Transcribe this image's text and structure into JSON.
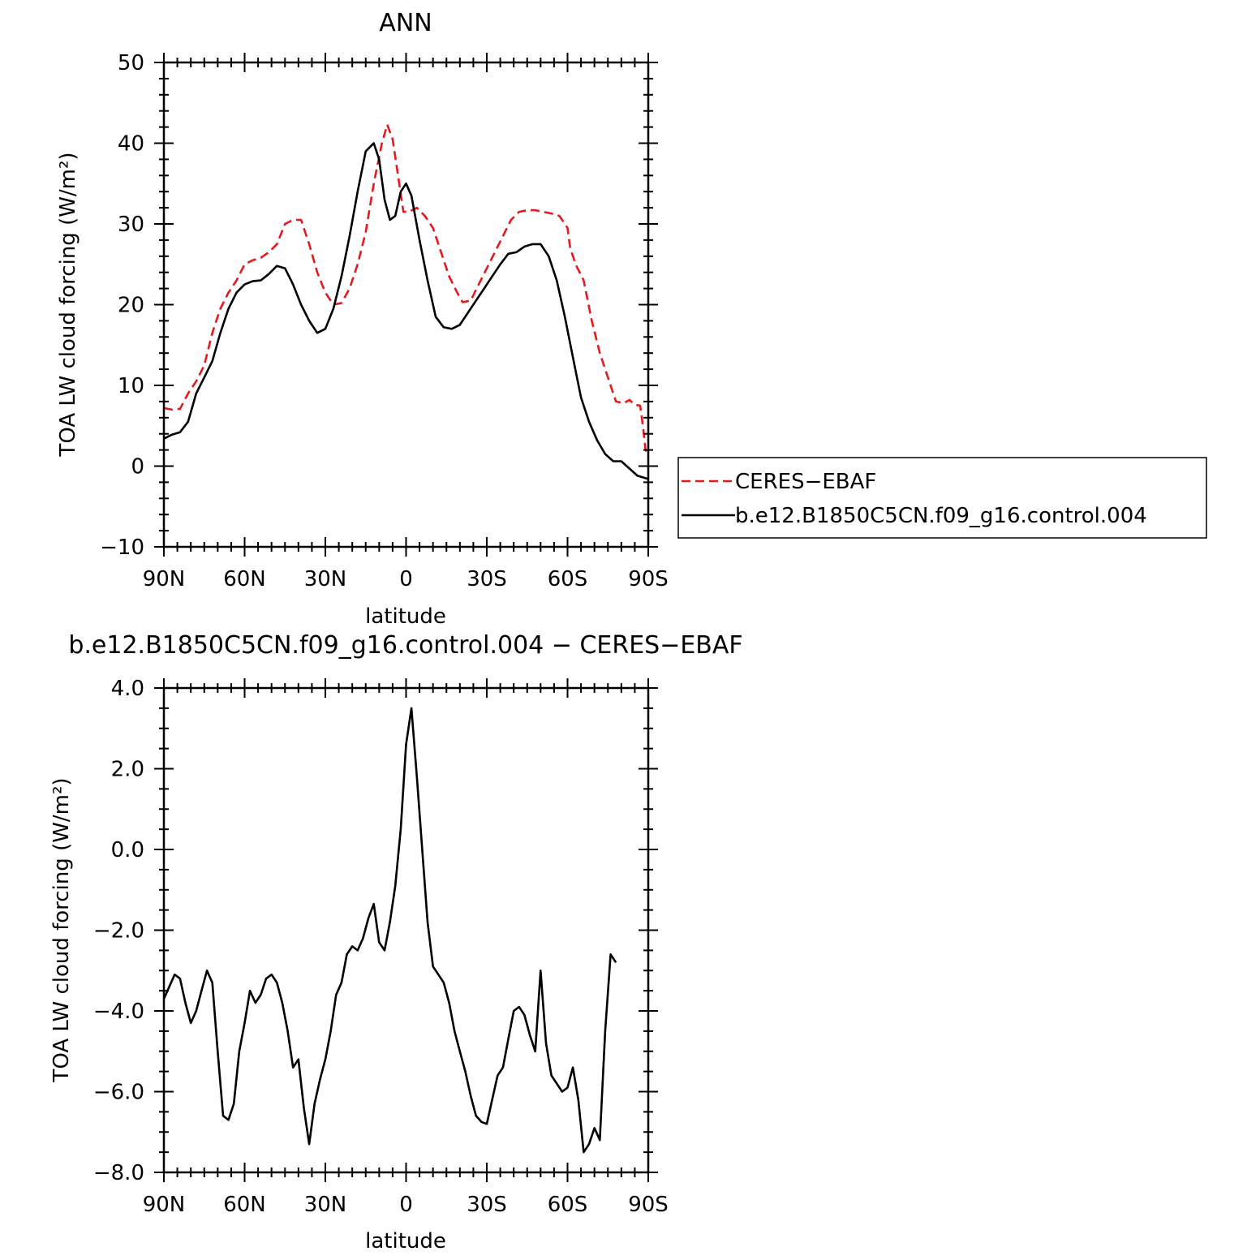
{
  "chart_data": [
    {
      "type": "line",
      "title": "ANN",
      "xlabel": "latitude",
      "ylabel": "TOA LW cloud forcing (W/m²)",
      "xlim": [
        90,
        -90
      ],
      "ylim": [
        -10,
        50
      ],
      "xticks": [
        90,
        60,
        30,
        0,
        -30,
        -60,
        -90
      ],
      "xtick_labels": [
        "90N",
        "60N",
        "30N",
        "0",
        "30S",
        "60S",
        "90S"
      ],
      "yticks": [
        -10,
        0,
        10,
        20,
        30,
        40,
        50
      ],
      "ytick_labels": [
        "−10",
        "0",
        "10",
        "20",
        "30",
        "40",
        "50"
      ],
      "legend_placement": "right",
      "series": [
        {
          "name": "CERES−EBAF",
          "color": "#e41a1c",
          "dash": "dashed",
          "points": [
            [
              90,
              7.2
            ],
            [
              87,
              7.0
            ],
            [
              84,
              7.1
            ],
            [
              81,
              9.0
            ],
            [
              78,
              10.5
            ],
            [
              75,
              12.5
            ],
            [
              72,
              16.5
            ],
            [
              69,
              19.5
            ],
            [
              66,
              21.5
            ],
            [
              63,
              23.0
            ],
            [
              60,
              25.0
            ],
            [
              57,
              25.5
            ],
            [
              54,
              25.8
            ],
            [
              51,
              26.5
            ],
            [
              48,
              27.5
            ],
            [
              45,
              30.0
            ],
            [
              42,
              30.5
            ],
            [
              39,
              30.5
            ],
            [
              36,
              27.5
            ],
            [
              33,
              24.0
            ],
            [
              30,
              21.5
            ],
            [
              27,
              20.0
            ],
            [
              24,
              20.2
            ],
            [
              21,
              22.0
            ],
            [
              18,
              25.0
            ],
            [
              15,
              29.0
            ],
            [
              12,
              35.0
            ],
            [
              9,
              40.0
            ],
            [
              7,
              42.3
            ],
            [
              5,
              40.5
            ],
            [
              3,
              36.0
            ],
            [
              1,
              31.5
            ],
            [
              -1,
              31.5
            ],
            [
              -4,
              32.0
            ],
            [
              -7,
              31.0
            ],
            [
              -10,
              29.5
            ],
            [
              -13,
              26.5
            ],
            [
              -16,
              23.5
            ],
            [
              -19,
              21.5
            ],
            [
              -21,
              20.3
            ],
            [
              -24,
              20.5
            ],
            [
              -27,
              22.5
            ],
            [
              -30,
              24.5
            ],
            [
              -33,
              26.5
            ],
            [
              -36,
              28.5
            ],
            [
              -39,
              30.5
            ],
            [
              -42,
              31.5
            ],
            [
              -45,
              31.7
            ],
            [
              -48,
              31.7
            ],
            [
              -51,
              31.5
            ],
            [
              -54,
              31.3
            ],
            [
              -57,
              31.0
            ],
            [
              -60,
              29.5
            ],
            [
              -61,
              27.0
            ],
            [
              -63,
              25.0
            ],
            [
              -66,
              23.0
            ],
            [
              -69,
              18.0
            ],
            [
              -72,
              14.0
            ],
            [
              -75,
              11.0
            ],
            [
              -78,
              8.0
            ],
            [
              -81,
              7.8
            ],
            [
              -83,
              8.2
            ],
            [
              -85,
              7.6
            ],
            [
              -87,
              7.5
            ],
            [
              -88,
              5.0
            ],
            [
              -89,
              2.0
            ],
            [
              -90,
              1.3
            ]
          ]
        },
        {
          "name": "b.e12.B1850C5CN.f09_g16.control.004",
          "color": "#000000",
          "dash": "solid",
          "points": [
            [
              90,
              3.4
            ],
            [
              87,
              3.9
            ],
            [
              84,
              4.2
            ],
            [
              81,
              5.5
            ],
            [
              78,
              9.0
            ],
            [
              75,
              11.0
            ],
            [
              72,
              13.0
            ],
            [
              69,
              16.5
            ],
            [
              66,
              19.5
            ],
            [
              63,
              21.5
            ],
            [
              60,
              22.5
            ],
            [
              57,
              22.9
            ],
            [
              54,
              23.0
            ],
            [
              51,
              23.8
            ],
            [
              48,
              24.8
            ],
            [
              45,
              24.5
            ],
            [
              42,
              22.5
            ],
            [
              39,
              20.0
            ],
            [
              36,
              18.0
            ],
            [
              33,
              16.5
            ],
            [
              30,
              17.0
            ],
            [
              27,
              19.5
            ],
            [
              24,
              23.5
            ],
            [
              21,
              28.5
            ],
            [
              18,
              34.0
            ],
            [
              15,
              39.0
            ],
            [
              12,
              40.0
            ],
            [
              10,
              38.0
            ],
            [
              8,
              33.0
            ],
            [
              6,
              30.5
            ],
            [
              4,
              31.0
            ],
            [
              2,
              34.0
            ],
            [
              0,
              35.0
            ],
            [
              -2,
              33.5
            ],
            [
              -5,
              28.0
            ],
            [
              -8,
              23.0
            ],
            [
              -11,
              18.5
            ],
            [
              -14,
              17.2
            ],
            [
              -17,
              17.0
            ],
            [
              -20,
              17.5
            ],
            [
              -23,
              19.0
            ],
            [
              -26,
              20.5
            ],
            [
              -29,
              22.0
            ],
            [
              -32,
              23.5
            ],
            [
              -35,
              25.0
            ],
            [
              -38,
              26.3
            ],
            [
              -41,
              26.5
            ],
            [
              -44,
              27.2
            ],
            [
              -47,
              27.5
            ],
            [
              -50,
              27.5
            ],
            [
              -53,
              26.0
            ],
            [
              -56,
              23.0
            ],
            [
              -59,
              18.5
            ],
            [
              -62,
              13.5
            ],
            [
              -65,
              8.5
            ],
            [
              -68,
              5.5
            ],
            [
              -71,
              3.2
            ],
            [
              -74,
              1.5
            ],
            [
              -77,
              0.6
            ],
            [
              -80,
              0.6
            ],
            [
              -83,
              -0.3
            ],
            [
              -86,
              -1.2
            ],
            [
              -90,
              -1.6
            ]
          ]
        }
      ]
    },
    {
      "type": "line",
      "title": "b.e12.B1850C5CN.f09_g16.control.004 − CERES−EBAF",
      "xlabel": "latitude",
      "ylabel": "TOA LW cloud forcing (W/m²)",
      "xlim": [
        90,
        -90
      ],
      "ylim": [
        -8,
        4
      ],
      "xticks": [
        90,
        60,
        30,
        0,
        -30,
        -60,
        -90
      ],
      "xtick_labels": [
        "90N",
        "60N",
        "30N",
        "0",
        "30S",
        "60S",
        "90S"
      ],
      "yticks": [
        -8,
        -6,
        -4,
        -2,
        0,
        2,
        4
      ],
      "ytick_labels": [
        "−8.0",
        "−6.0",
        "−4.0",
        "−2.0",
        "0.0",
        "2.0",
        "4.0"
      ],
      "series": [
        {
          "color": "#000000",
          "dash": "solid",
          "points": [
            [
              90,
              -3.7
            ],
            [
              88,
              -3.4
            ],
            [
              86,
              -3.1
            ],
            [
              84,
              -3.2
            ],
            [
              82,
              -3.8
            ],
            [
              80,
              -4.3
            ],
            [
              78,
              -4.0
            ],
            [
              76,
              -3.5
            ],
            [
              74,
              -3.0
            ],
            [
              72,
              -3.3
            ],
            [
              70,
              -5.0
            ],
            [
              68,
              -6.6
            ],
            [
              66,
              -6.7
            ],
            [
              64,
              -6.3
            ],
            [
              62,
              -5.0
            ],
            [
              60,
              -4.3
            ],
            [
              58,
              -3.5
            ],
            [
              56,
              -3.8
            ],
            [
              54,
              -3.6
            ],
            [
              52,
              -3.2
            ],
            [
              50,
              -3.1
            ],
            [
              48,
              -3.3
            ],
            [
              46,
              -3.8
            ],
            [
              44,
              -4.5
            ],
            [
              42,
              -5.4
            ],
            [
              40,
              -5.2
            ],
            [
              38,
              -6.4
            ],
            [
              36,
              -7.3
            ],
            [
              34,
              -6.3
            ],
            [
              32,
              -5.7
            ],
            [
              30,
              -5.2
            ],
            [
              28,
              -4.5
            ],
            [
              26,
              -3.6
            ],
            [
              24,
              -3.3
            ],
            [
              22,
              -2.6
            ],
            [
              20,
              -2.4
            ],
            [
              18,
              -2.5
            ],
            [
              16,
              -2.2
            ],
            [
              14,
              -1.7
            ],
            [
              12,
              -1.35
            ],
            [
              10,
              -2.3
            ],
            [
              8,
              -2.5
            ],
            [
              6,
              -1.8
            ],
            [
              4,
              -0.9
            ],
            [
              2,
              0.5
            ],
            [
              0,
              2.6
            ],
            [
              -2,
              3.5
            ],
            [
              -4,
              1.8
            ],
            [
              -6,
              0.0
            ],
            [
              -8,
              -1.8
            ],
            [
              -10,
              -2.9
            ],
            [
              -12,
              -3.1
            ],
            [
              -14,
              -3.3
            ],
            [
              -16,
              -3.8
            ],
            [
              -18,
              -4.5
            ],
            [
              -20,
              -5.0
            ],
            [
              -22,
              -5.5
            ],
            [
              -24,
              -6.1
            ],
            [
              -26,
              -6.6
            ],
            [
              -28,
              -6.75
            ],
            [
              -30,
              -6.8
            ],
            [
              -32,
              -6.2
            ],
            [
              -34,
              -5.6
            ],
            [
              -36,
              -5.4
            ],
            [
              -38,
              -4.7
            ],
            [
              -40,
              -4.0
            ],
            [
              -42,
              -3.9
            ],
            [
              -44,
              -4.1
            ],
            [
              -46,
              -4.6
            ],
            [
              -48,
              -5.0
            ],
            [
              -50,
              -3.0
            ],
            [
              -52,
              -4.8
            ],
            [
              -54,
              -5.6
            ],
            [
              -56,
              -5.8
            ],
            [
              -58,
              -6.0
            ],
            [
              -60,
              -5.9
            ],
            [
              -62,
              -5.4
            ],
            [
              -64,
              -6.2
            ],
            [
              -66,
              -7.5
            ],
            [
              -68,
              -7.3
            ],
            [
              -70,
              -6.9
            ],
            [
              -72,
              -7.2
            ],
            [
              -74,
              -4.5
            ],
            [
              -76,
              -2.6
            ],
            [
              -78,
              -2.8
            ]
          ]
        }
      ]
    }
  ]
}
